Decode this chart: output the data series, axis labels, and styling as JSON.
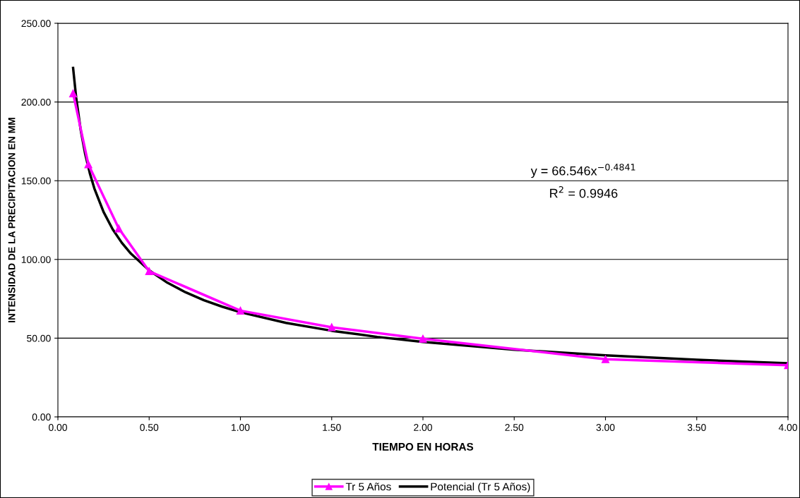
{
  "chart_data": {
    "type": "line",
    "xlabel": "TIEMPO EN HORAS",
    "ylabel": "INTENSIDAD DE LA PRECIPITACION EN MM",
    "series": [
      {
        "name": "Tr 5 Años",
        "color": "#ff00ff",
        "marker": "triangle",
        "x": [
          0.0833,
          0.1667,
          0.3333,
          0.5,
          1.0,
          1.5,
          2.0,
          3.0,
          4.0
        ],
        "values": [
          205.5,
          160.4,
          119.7,
          92.5,
          67.5,
          56.9,
          49.6,
          36.6,
          32.8
        ]
      },
      {
        "name": "Potencial (Tr 5 Años)",
        "color": "#000000",
        "marker": "none",
        "x": [
          0.0833,
          0.1,
          0.125,
          0.15,
          0.175,
          0.2,
          0.25,
          0.3,
          0.35,
          0.4,
          0.5,
          0.6,
          0.7,
          0.8,
          0.9,
          1.0,
          1.25,
          1.5,
          1.75,
          2.0,
          2.5,
          3.0,
          3.5,
          4.0
        ],
        "values": [
          221.6,
          202.9,
          182.1,
          166.7,
          154.7,
          145.0,
          130.2,
          119.2,
          110.6,
          103.7,
          93.1,
          85.2,
          79.1,
          74.1,
          70.0,
          66.5,
          59.7,
          54.7,
          50.8,
          47.6,
          42.7,
          39.1,
          36.3,
          34.0
        ]
      }
    ],
    "xlim": [
      0,
      4
    ],
    "ylim": [
      0,
      250
    ],
    "xticks": [
      {
        "value": 0,
        "label": "0.00"
      },
      {
        "value": 0.5,
        "label": "0.50"
      },
      {
        "value": 1,
        "label": "1.00"
      },
      {
        "value": 1.5,
        "label": "1.50"
      },
      {
        "value": 2,
        "label": "2.00"
      },
      {
        "value": 2.5,
        "label": "2.50"
      },
      {
        "value": 3,
        "label": "3.00"
      },
      {
        "value": 3.5,
        "label": "3.50"
      },
      {
        "value": 4,
        "label": "4.00"
      }
    ],
    "yticks": [
      {
        "value": 0,
        "label": "0.00"
      },
      {
        "value": 50,
        "label": "50.00"
      },
      {
        "value": 100,
        "label": "100.00"
      },
      {
        "value": 150,
        "label": "150.00"
      },
      {
        "value": 200,
        "label": "200.00"
      },
      {
        "value": 250,
        "label": "250.00"
      }
    ],
    "annotations": [
      "y = 66.546x$^{−0.4841}$",
      "R$^{2}$ = 0.9946"
    ],
    "grid": "y",
    "legend": "bottom",
    "line_style": "solid"
  }
}
